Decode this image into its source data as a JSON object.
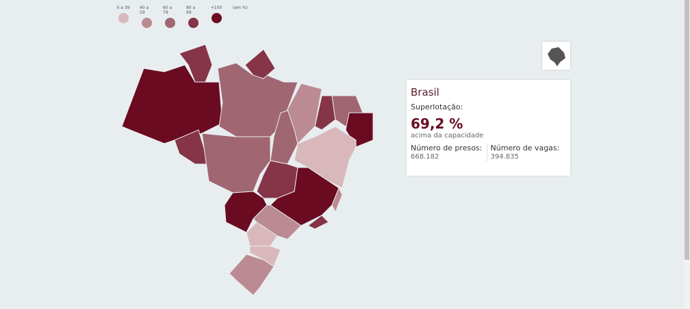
{
  "legend": {
    "items": [
      {
        "label": "0 a 39",
        "color": "#d9b8bb"
      },
      {
        "label": "40 a 59",
        "color": "#bb8a92"
      },
      {
        "label": "60 a 79",
        "color": "#a06672"
      },
      {
        "label": "80 a 99",
        "color": "#863447"
      },
      {
        "label": "+100",
        "color": "#6a0b21"
      }
    ],
    "unit": "(em %)"
  },
  "card": {
    "region": "Brasil",
    "metric": "Superlotação:",
    "value": "69,2 %",
    "value_note": "acima da capacidade",
    "prisoners_label": "Número de presos:",
    "prisoners": "668.182",
    "vacancies_label": "Número de vagas:",
    "vacancies": "394.835"
  }
}
